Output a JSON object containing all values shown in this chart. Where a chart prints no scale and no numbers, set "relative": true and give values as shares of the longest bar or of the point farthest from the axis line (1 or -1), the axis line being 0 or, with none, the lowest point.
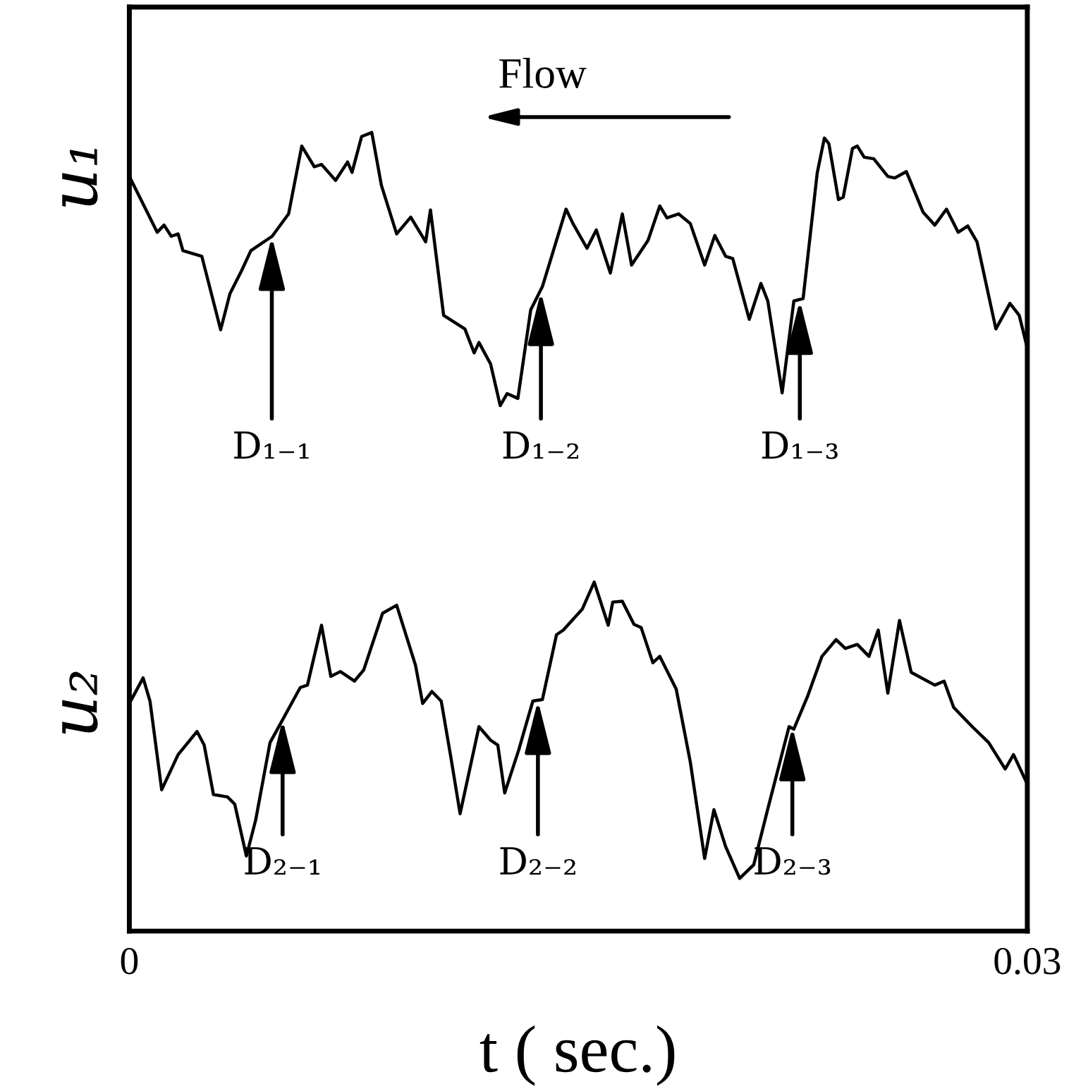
{
  "chart_data": {
    "type": "line",
    "relative": true,
    "xlabel": "t ( sec.)",
    "xlim": [
      0,
      0.03
    ],
    "xticks": [
      0,
      0.03
    ],
    "tick_labels": "x",
    "marker": "none",
    "line_style": "solid",
    "annotations": [
      "Flow",
      {
        "text": "D₁₋₁",
        "x": 0.00476,
        "y": 0.87
      },
      {
        "text": "D₁₋₂",
        "x": 0.01375,
        "y": 0.801
      },
      {
        "text": "D₁₋₃",
        "x": 0.0224,
        "y": 0.79
      },
      {
        "text": "D₂₋₁",
        "x": 0.00512,
        "y": 0.265
      },
      {
        "text": "D₂₋₂",
        "x": 0.01365,
        "y": 0.289
      },
      {
        "text": "D₂₋₃",
        "x": 0.02215,
        "y": 0.256
      }
    ],
    "series": [
      {
        "name": "u₁",
        "color": "#000000",
        "x": [
          0,
          0.00093,
          0.00116,
          0.0014,
          0.00163,
          0.00179,
          0.00242,
          0.00305,
          0.00336,
          0.00375,
          0.00406,
          0.00477,
          0.00532,
          0.00576,
          0.00618,
          0.00642,
          0.00689,
          0.00729,
          0.00744,
          0.00776,
          0.0081,
          0.00842,
          0.00893,
          0.0094,
          0.0099,
          0.01006,
          0.0105,
          0.01121,
          0.01152,
          0.01168,
          0.01207,
          0.01239,
          0.01262,
          0.01298,
          0.01341,
          0.0138,
          0.01459,
          0.01482,
          0.01529,
          0.0156,
          0.01607,
          0.01647,
          0.01678,
          0.01733,
          0.01772,
          0.01796,
          0.01835,
          0.01874,
          0.01922,
          0.01956,
          0.01992,
          0.02016,
          0.02071,
          0.0211,
          0.02133,
          0.02181,
          0.0222,
          0.02251,
          0.02298,
          0.02322,
          0.02337,
          0.02369,
          0.02385,
          0.02416,
          0.02432,
          0.02455,
          0.02487,
          0.02534,
          0.02557,
          0.02596,
          0.02652,
          0.02691,
          0.0273,
          0.02769,
          0.02801,
          0.02832,
          0.02895,
          0.02942,
          0.02973,
          0.03
        ],
        "values": [
          0.945,
          0.875,
          0.884,
          0.87,
          0.873,
          0.852,
          0.845,
          0.753,
          0.798,
          0.827,
          0.852,
          0.87,
          0.898,
          0.983,
          0.957,
          0.96,
          0.94,
          0.963,
          0.95,
          0.995,
          1.0,
          0.934,
          0.873,
          0.894,
          0.863,
          0.903,
          0.771,
          0.754,
          0.724,
          0.737,
          0.71,
          0.658,
          0.673,
          0.667,
          0.778,
          0.807,
          0.904,
          0.886,
          0.855,
          0.878,
          0.824,
          0.898,
          0.834,
          0.865,
          0.908,
          0.893,
          0.898,
          0.886,
          0.834,
          0.871,
          0.845,
          0.842,
          0.766,
          0.811,
          0.789,
          0.674,
          0.789,
          0.792,
          0.949,
          0.993,
          0.986,
          0.916,
          0.919,
          0.98,
          0.983,
          0.969,
          0.967,
          0.945,
          0.943,
          0.951,
          0.9,
          0.884,
          0.904,
          0.875,
          0.883,
          0.863,
          0.754,
          0.786,
          0.771,
          0.73
        ]
      },
      {
        "name": "u₂",
        "color": "#000000",
        "x": [
          0,
          0.00046,
          0.00069,
          0.00108,
          0.00163,
          0.00226,
          0.0025,
          0.00281,
          0.00328,
          0.00352,
          0.00391,
          0.00422,
          0.0047,
          0.00517,
          0.00571,
          0.00595,
          0.00642,
          0.00673,
          0.00705,
          0.00752,
          0.00783,
          0.00846,
          0.00893,
          0.00956,
          0.0098,
          0.01011,
          0.01042,
          0.01074,
          0.01105,
          0.01168,
          0.01207,
          0.01231,
          0.01254,
          0.01301,
          0.01348,
          0.0138,
          0.01427,
          0.0145,
          0.01513,
          0.01553,
          0.016,
          0.01615,
          0.01647,
          0.01686,
          0.0171,
          0.01749,
          0.01772,
          0.01827,
          0.01874,
          0.01922,
          0.01953,
          0.01992,
          0.02039,
          0.02086,
          0.02133,
          0.02204,
          0.0222,
          0.02267,
          0.02314,
          0.02361,
          0.02392,
          0.02432,
          0.02471,
          0.02502,
          0.02534,
          0.02573,
          0.02612,
          0.02691,
          0.02722,
          0.02754,
          0.02816,
          0.02871,
          0.02926,
          0.02954,
          0.03
        ],
        "values": [
          0.285,
          0.317,
          0.288,
          0.177,
          0.221,
          0.25,
          0.233,
          0.171,
          0.168,
          0.159,
          0.094,
          0.139,
          0.236,
          0.268,
          0.305,
          0.308,
          0.383,
          0.319,
          0.325,
          0.313,
          0.327,
          0.398,
          0.408,
          0.333,
          0.285,
          0.3,
          0.288,
          0.218,
          0.147,
          0.256,
          0.239,
          0.233,
          0.173,
          0.227,
          0.288,
          0.29,
          0.371,
          0.377,
          0.403,
          0.437,
          0.383,
          0.412,
          0.413,
          0.384,
          0.38,
          0.336,
          0.344,
          0.303,
          0.212,
          0.091,
          0.152,
          0.106,
          0.066,
          0.083,
          0.153,
          0.256,
          0.253,
          0.295,
          0.344,
          0.365,
          0.354,
          0.359,
          0.344,
          0.377,
          0.298,
          0.389,
          0.324,
          0.308,
          0.313,
          0.28,
          0.256,
          0.236,
          0.203,
          0.221,
          0.184
        ]
      }
    ]
  }
}
